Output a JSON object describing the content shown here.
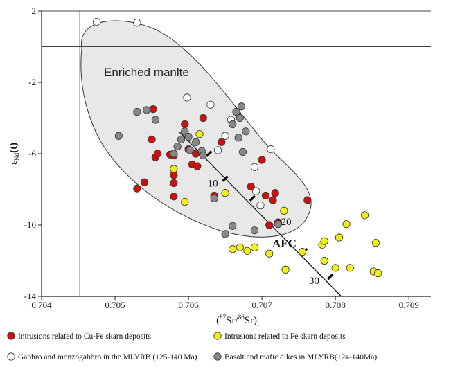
{
  "chart_data": {
    "type": "scatter",
    "xlabel_parts": [
      "(",
      "87",
      "Sr/",
      "86",
      "Sr)",
      "i"
    ],
    "ylabel_parts": [
      "ε",
      "Nd",
      "(t)"
    ],
    "xlim": [
      0.704,
      0.7093
    ],
    "ylim": [
      -14,
      2
    ],
    "x_ticks": [
      0.704,
      0.705,
      0.706,
      0.707,
      0.708,
      0.709
    ],
    "x_tick_labels": [
      "0.704",
      "0.705",
      "0.706",
      "0.707",
      "0.708",
      "0.709"
    ],
    "y_ticks": [
      -14,
      -10,
      -6,
      -2,
      2
    ],
    "y_tick_labels": [
      "-14",
      "-10",
      "-6",
      "-2",
      "2"
    ],
    "reference_lines": {
      "vertical_x": 0.70452,
      "horizontal_y": 0.0
    },
    "region_label": "Enriched manlte",
    "afc": {
      "label": "AFC",
      "start": [
        0.70588,
        -4.8
      ],
      "end": [
        0.70808,
        -14
      ],
      "ticks": [
        [
          0.70628,
          -6.0
        ],
        [
          0.7065,
          -7.4
        ],
        [
          0.70687,
          -8.5
        ],
        [
          0.70722,
          -9.9
        ],
        [
          0.70758,
          -11.45
        ],
        [
          0.70793,
          -12.9
        ]
      ],
      "tick_labels": [
        {
          "text": "10",
          "x": 0.70633,
          "y": -7.85
        },
        {
          "text": "20",
          "x": 0.70733,
          "y": -10.0
        },
        {
          "text": "30",
          "x": 0.70771,
          "y": -13.3
        }
      ]
    },
    "series": [
      {
        "name": "Intrusions related to  Cu-Fe skarn deposits",
        "color": "#cc1111",
        "marker": "filled-red",
        "points": [
          [
            0.7053,
            -7.95
          ],
          [
            0.7054,
            -7.6
          ],
          [
            0.7055,
            -5.2
          ],
          [
            0.70552,
            -3.5
          ],
          [
            0.70555,
            -6.2
          ],
          [
            0.70558,
            -6.0
          ],
          [
            0.70575,
            -6.05
          ],
          [
            0.7058,
            -6.1
          ],
          [
            0.7058,
            -7.2
          ],
          [
            0.7058,
            -7.65
          ],
          [
            0.7058,
            -8.4
          ],
          [
            0.70595,
            -4.35
          ],
          [
            0.706,
            -5.75
          ],
          [
            0.70605,
            -6.6
          ],
          [
            0.7061,
            -6.0
          ],
          [
            0.70612,
            -6.7
          ],
          [
            0.7062,
            -4.0
          ],
          [
            0.70635,
            -8.35
          ],
          [
            0.70645,
            -5.35
          ],
          [
            0.70685,
            -7.85
          ],
          [
            0.707,
            -6.35
          ],
          [
            0.70705,
            -8.35
          ],
          [
            0.70715,
            -8.6
          ],
          [
            0.70718,
            -8.2
          ],
          [
            0.70722,
            -9.85
          ],
          [
            0.7071,
            -10.0
          ],
          [
            0.70762,
            -8.6
          ]
        ]
      },
      {
        "name": "Intrusions related to  Fe skarn deposits",
        "color": "#f2ee1a",
        "marker": "filled-yellow",
        "points": [
          [
            0.7058,
            -6.85
          ],
          [
            0.70595,
            -8.7
          ],
          [
            0.70615,
            -4.9
          ],
          [
            0.7065,
            -8.2
          ],
          [
            0.7066,
            -11.35
          ],
          [
            0.7067,
            -11.25
          ],
          [
            0.7068,
            -11.45
          ],
          [
            0.7069,
            -11.25
          ],
          [
            0.7071,
            -11.6
          ],
          [
            0.7073,
            -9.2
          ],
          [
            0.70732,
            -12.5
          ],
          [
            0.70755,
            -11.5
          ],
          [
            0.70782,
            -11.1
          ],
          [
            0.70785,
            -10.9
          ],
          [
            0.70785,
            -12.0
          ],
          [
            0.708,
            -12.4
          ],
          [
            0.70805,
            -10.7
          ],
          [
            0.7082,
            -12.4
          ],
          [
            0.70815,
            -9.95
          ],
          [
            0.7084,
            -9.45
          ],
          [
            0.70852,
            -12.6
          ],
          [
            0.70855,
            -11.0
          ],
          [
            0.70858,
            -12.7
          ]
        ]
      },
      {
        "name": "Gabbro and monzogabbro in the MLYRB (125-140 Ma)",
        "color": "#ffffff",
        "marker": "open-circle",
        "points": [
          [
            0.70475,
            1.4
          ],
          [
            0.7053,
            1.35
          ],
          [
            0.70598,
            -2.85
          ],
          [
            0.7063,
            -3.25
          ],
          [
            0.7064,
            -5.8
          ],
          [
            0.7065,
            -5.0
          ],
          [
            0.70658,
            -4.1
          ],
          [
            0.7069,
            -6.75
          ],
          [
            0.70692,
            -8.1
          ],
          [
            0.70698,
            -8.9
          ],
          [
            0.70712,
            -5.75
          ]
        ]
      },
      {
        "name": "Basalt and mafic dikes in MLYRB(124-140Ma)",
        "color": "#888888",
        "marker": "filled-grey",
        "points": [
          [
            0.70505,
            -5.0
          ],
          [
            0.7053,
            -3.65
          ],
          [
            0.70543,
            -3.55
          ],
          [
            0.70555,
            -4.1
          ],
          [
            0.7058,
            -6.0
          ],
          [
            0.70585,
            -5.6
          ],
          [
            0.7059,
            -5.2
          ],
          [
            0.70595,
            -4.75
          ],
          [
            0.706,
            -5.05
          ],
          [
            0.70602,
            -5.8
          ],
          [
            0.7061,
            -5.35
          ],
          [
            0.70618,
            -5.85
          ],
          [
            0.7062,
            -6.1
          ],
          [
            0.70635,
            -8.5
          ],
          [
            0.7065,
            -10.5
          ],
          [
            0.7066,
            -10.05
          ],
          [
            0.7066,
            -4.35
          ],
          [
            0.70665,
            -3.65
          ],
          [
            0.70668,
            -5.1
          ],
          [
            0.7067,
            -4.0
          ],
          [
            0.70672,
            -3.35
          ],
          [
            0.70674,
            -5.9
          ],
          [
            0.70678,
            -4.75
          ],
          [
            0.7069,
            -10.3
          ],
          [
            0.70722,
            -9.95
          ]
        ]
      }
    ],
    "legend": [
      "Intrusions related to  Cu-Fe skarn deposits",
      "Intrusions related to  Fe skarn deposits",
      "Gabbro and monzogabbro in the MLYRB (125-140 Ma)",
      "Basalt and mafic dikes in MLYRB(124-140Ma)"
    ]
  }
}
